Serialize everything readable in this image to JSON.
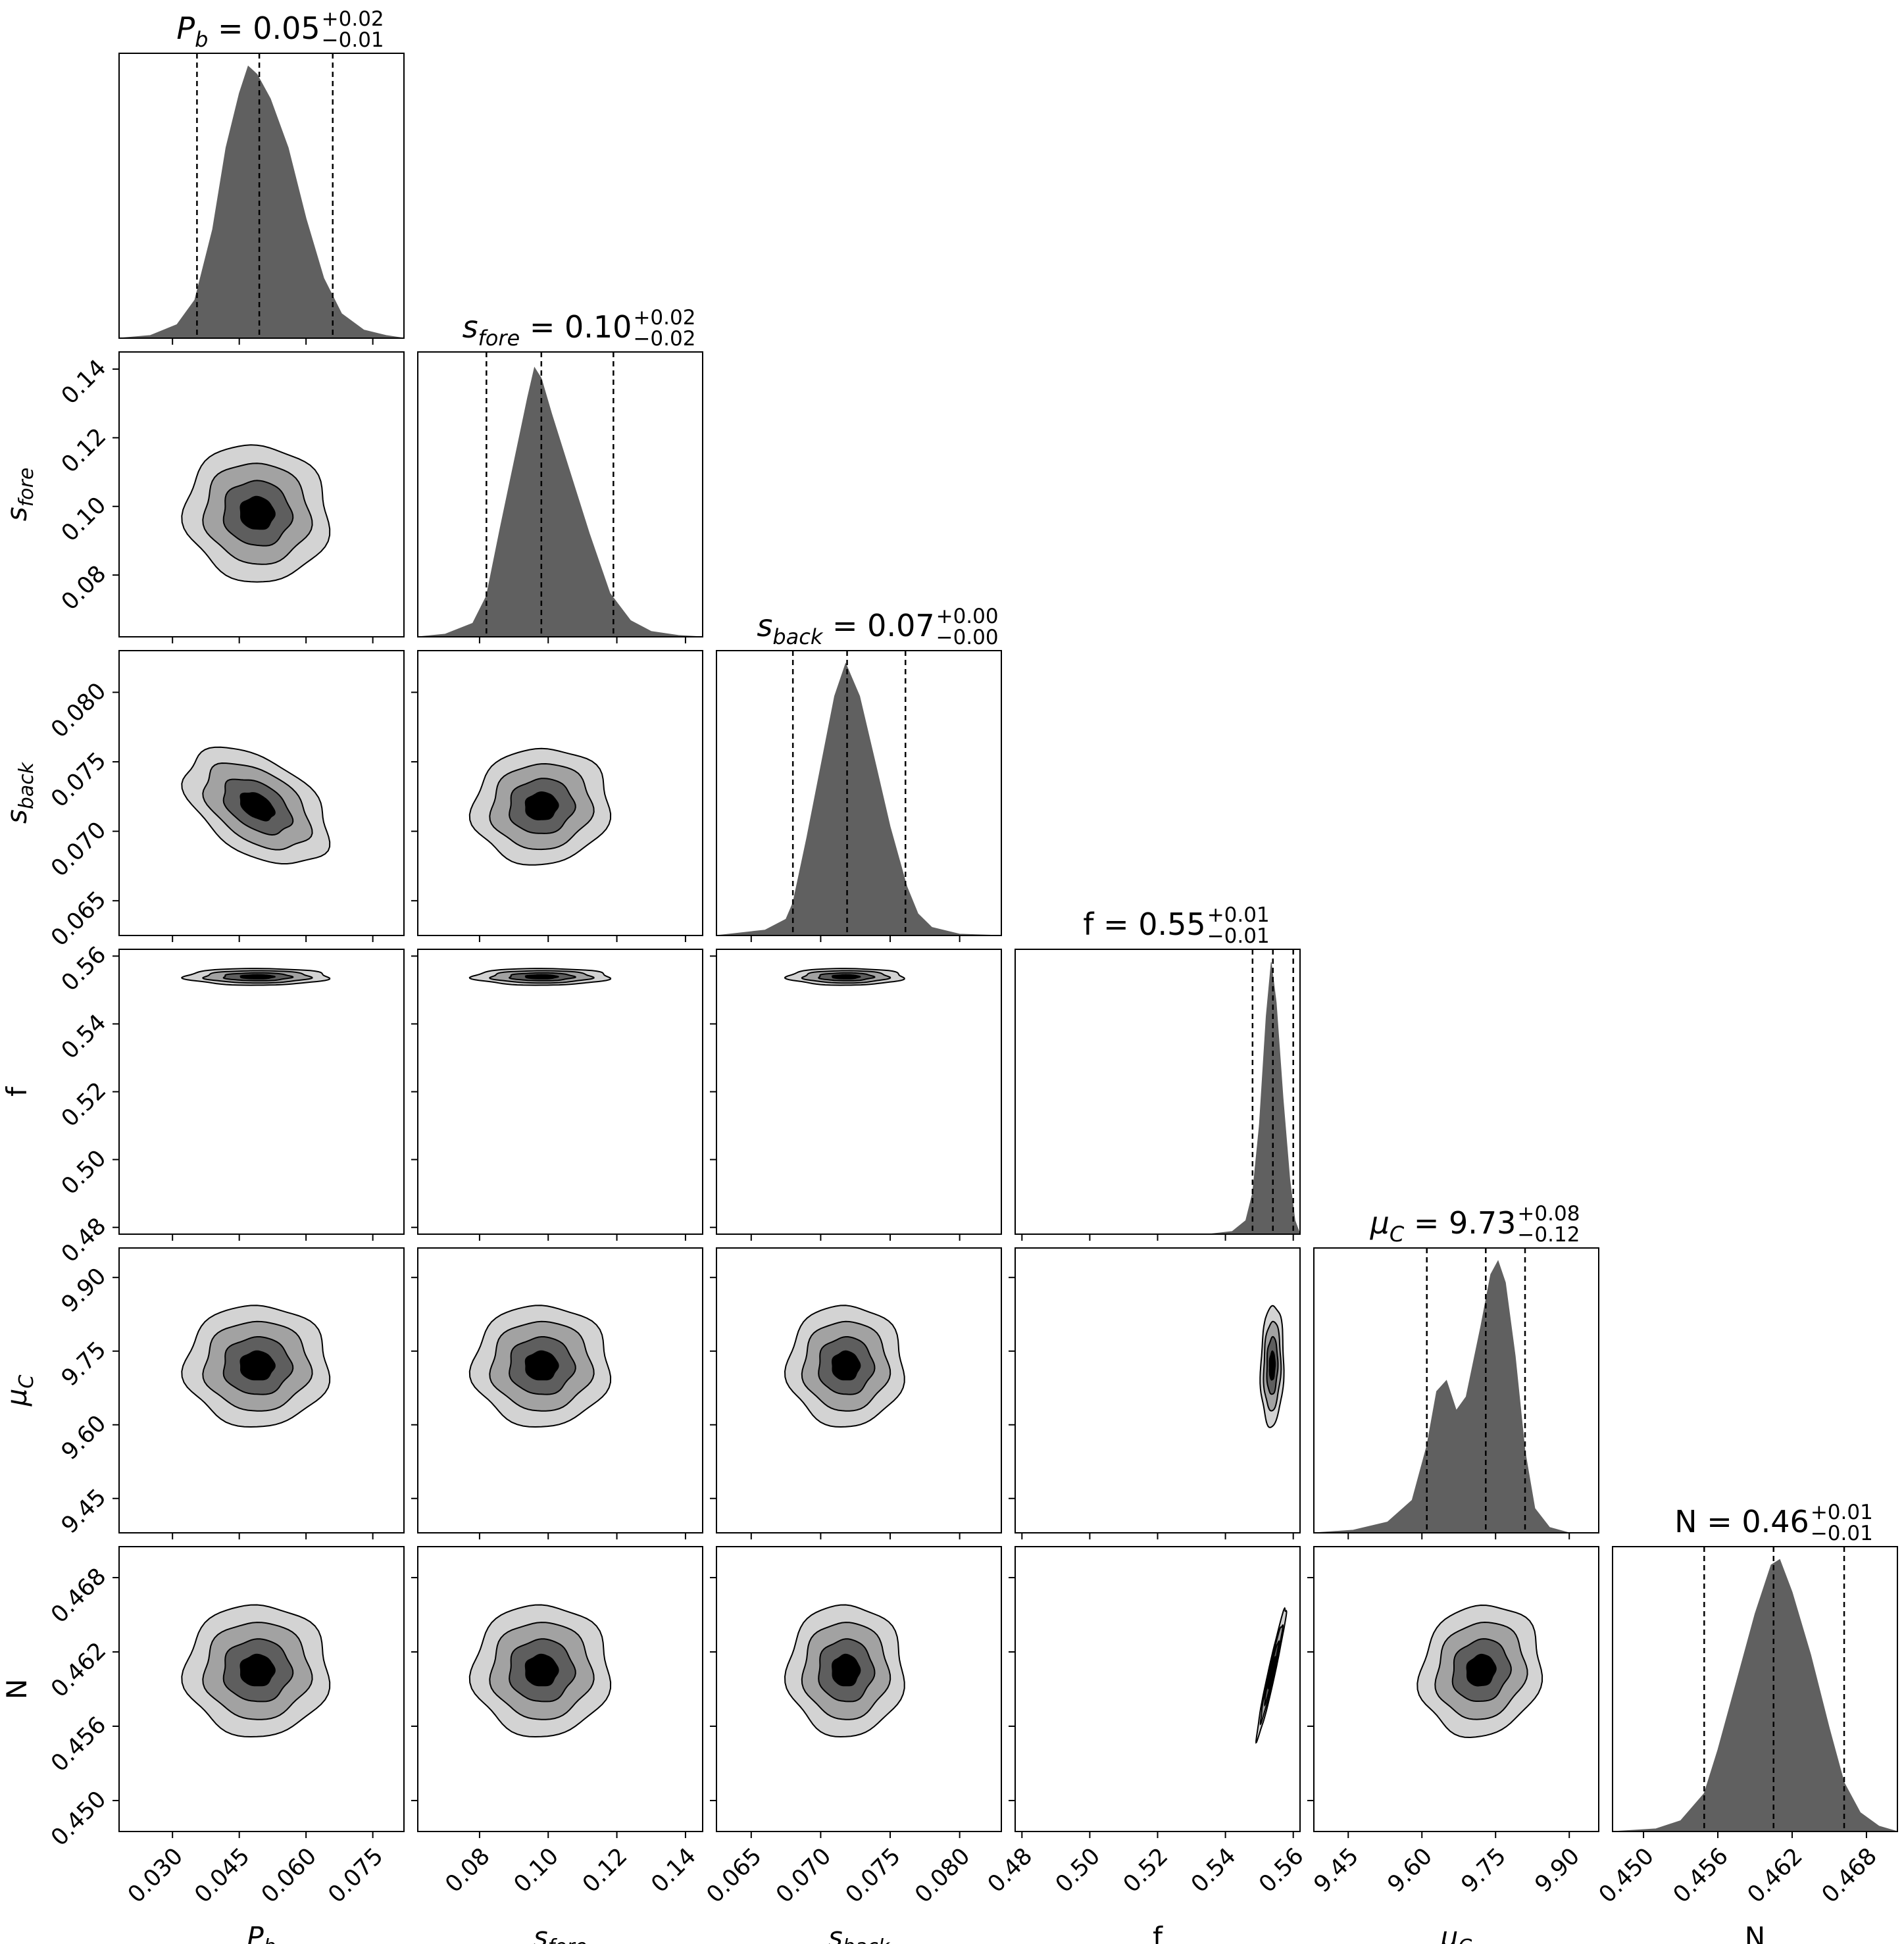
{
  "chart_data": {
    "type": "corner",
    "parameters": [
      {
        "id": "Pb",
        "label": "P_b",
        "range": [
          0.018,
          0.082
        ],
        "ticks": [
          "0.030",
          "0.045",
          "0.060",
          "0.075"
        ],
        "tick_values": [
          0.03,
          0.045,
          0.06,
          0.075
        ],
        "median": 0.0495,
        "q_low": 0.0355,
        "q_high": 0.066,
        "title": {
          "name": "P_b",
          "value": "0.05",
          "plus": "+0.02",
          "minus": "−0.01"
        },
        "hist": [
          [
            0.018,
            0.0
          ],
          [
            0.025,
            0.01
          ],
          [
            0.031,
            0.05
          ],
          [
            0.035,
            0.14
          ],
          [
            0.039,
            0.4
          ],
          [
            0.042,
            0.7
          ],
          [
            0.045,
            0.9
          ],
          [
            0.047,
            1.0
          ],
          [
            0.049,
            0.97
          ],
          [
            0.052,
            0.88
          ],
          [
            0.056,
            0.7
          ],
          [
            0.06,
            0.44
          ],
          [
            0.064,
            0.22
          ],
          [
            0.068,
            0.09
          ],
          [
            0.073,
            0.03
          ],
          [
            0.078,
            0.01
          ],
          [
            0.082,
            0.0
          ]
        ]
      },
      {
        "id": "sfore",
        "label": "s_fore",
        "range": [
          0.062,
          0.145
        ],
        "ticks": [
          "0.08",
          "0.10",
          "0.12",
          "0.14"
        ],
        "tick_values": [
          0.08,
          0.1,
          0.12,
          0.14
        ],
        "median": 0.098,
        "q_low": 0.082,
        "q_high": 0.119,
        "title": {
          "name": "s_fore",
          "value": "0.10",
          "plus": "+0.02",
          "minus": "−0.02"
        },
        "hist": [
          [
            0.062,
            0.0
          ],
          [
            0.07,
            0.01
          ],
          [
            0.078,
            0.05
          ],
          [
            0.082,
            0.15
          ],
          [
            0.086,
            0.4
          ],
          [
            0.091,
            0.7
          ],
          [
            0.094,
            0.88
          ],
          [
            0.096,
            0.99
          ],
          [
            0.098,
            0.95
          ],
          [
            0.101,
            0.82
          ],
          [
            0.106,
            0.62
          ],
          [
            0.112,
            0.38
          ],
          [
            0.118,
            0.16
          ],
          [
            0.124,
            0.06
          ],
          [
            0.13,
            0.02
          ],
          [
            0.138,
            0.005
          ],
          [
            0.145,
            0.0
          ]
        ]
      },
      {
        "id": "sback",
        "label": "s_back",
        "range": [
          0.0625,
          0.083
        ],
        "ticks": [
          "0.065",
          "0.070",
          "0.075",
          "0.080"
        ],
        "tick_values": [
          0.065,
          0.07,
          0.075,
          0.08
        ],
        "median": 0.0719,
        "q_low": 0.068,
        "q_high": 0.0761,
        "title": {
          "name": "s_back",
          "value": "0.07",
          "plus": "+0.00",
          "minus": "−0.00"
        },
        "hist": [
          [
            0.0625,
            0.0
          ],
          [
            0.066,
            0.02
          ],
          [
            0.0675,
            0.06
          ],
          [
            0.068,
            0.12
          ],
          [
            0.069,
            0.36
          ],
          [
            0.07,
            0.62
          ],
          [
            0.071,
            0.88
          ],
          [
            0.0718,
            1.0
          ],
          [
            0.0728,
            0.88
          ],
          [
            0.074,
            0.62
          ],
          [
            0.075,
            0.4
          ],
          [
            0.0762,
            0.18
          ],
          [
            0.077,
            0.08
          ],
          [
            0.078,
            0.03
          ],
          [
            0.08,
            0.005
          ],
          [
            0.083,
            0.0
          ]
        ]
      },
      {
        "id": "f",
        "label": "f",
        "range": [
          0.478,
          0.562
        ],
        "ticks": [
          "0.48",
          "0.50",
          "0.52",
          "0.54",
          "0.56"
        ],
        "tick_values": [
          0.48,
          0.5,
          0.52,
          0.54,
          0.56
        ],
        "median": 0.554,
        "q_low": 0.548,
        "q_high": 0.56,
        "title": {
          "name": "f",
          "value": "0.55",
          "plus": "+0.01",
          "minus": "−0.01"
        },
        "hist": [
          [
            0.478,
            0.0
          ],
          [
            0.535,
            0.0
          ],
          [
            0.542,
            0.01
          ],
          [
            0.546,
            0.05
          ],
          [
            0.548,
            0.15
          ],
          [
            0.55,
            0.4
          ],
          [
            0.552,
            0.8
          ],
          [
            0.5535,
            1.0
          ],
          [
            0.555,
            0.85
          ],
          [
            0.557,
            0.5
          ],
          [
            0.559,
            0.2
          ],
          [
            0.5605,
            0.05
          ],
          [
            0.562,
            0.0
          ]
        ]
      },
      {
        "id": "muC",
        "label": "μ_C",
        "range": [
          9.38,
          9.96
        ],
        "ticks": [
          "9.45",
          "9.60",
          "9.75",
          "9.90"
        ],
        "tick_values": [
          9.45,
          9.6,
          9.75,
          9.9
        ],
        "median": 9.73,
        "q_low": 9.61,
        "q_high": 9.81,
        "title": {
          "name": "μ_C",
          "value": "9.73",
          "plus": "+0.08",
          "minus": "−0.12"
        },
        "hist": [
          [
            9.38,
            0.0
          ],
          [
            9.46,
            0.01
          ],
          [
            9.53,
            0.04
          ],
          [
            9.58,
            0.12
          ],
          [
            9.61,
            0.32
          ],
          [
            9.63,
            0.52
          ],
          [
            9.65,
            0.56
          ],
          [
            9.67,
            0.45
          ],
          [
            9.69,
            0.5
          ],
          [
            9.72,
            0.76
          ],
          [
            9.74,
            0.95
          ],
          [
            9.755,
            1.0
          ],
          [
            9.77,
            0.92
          ],
          [
            9.79,
            0.65
          ],
          [
            9.81,
            0.3
          ],
          [
            9.83,
            0.09
          ],
          [
            9.86,
            0.02
          ],
          [
            9.9,
            0.0
          ],
          [
            9.96,
            0.0
          ]
        ]
      },
      {
        "id": "N",
        "label": "N",
        "range": [
          0.4475,
          0.4705
        ],
        "ticks": [
          "0.450",
          "0.456",
          "0.462",
          "0.468"
        ],
        "tick_values": [
          0.45,
          0.456,
          0.462,
          0.468
        ],
        "median": 0.4605,
        "q_low": 0.4549,
        "q_high": 0.4662,
        "title": {
          "name": "N",
          "value": "0.46",
          "plus": "+0.01",
          "minus": "−0.01"
        },
        "hist": [
          [
            0.4475,
            0.0
          ],
          [
            0.451,
            0.01
          ],
          [
            0.453,
            0.04
          ],
          [
            0.4549,
            0.14
          ],
          [
            0.456,
            0.3
          ],
          [
            0.4575,
            0.55
          ],
          [
            0.459,
            0.8
          ],
          [
            0.4603,
            0.98
          ],
          [
            0.461,
            1.0
          ],
          [
            0.462,
            0.88
          ],
          [
            0.4635,
            0.65
          ],
          [
            0.465,
            0.38
          ],
          [
            0.4662,
            0.18
          ],
          [
            0.4675,
            0.07
          ],
          [
            0.469,
            0.02
          ],
          [
            0.4705,
            0.0
          ]
        ]
      }
    ],
    "contours": [
      {
        "x": "Pb",
        "y": "sfore",
        "mean": [
          0.049,
          0.098
        ],
        "sd": [
          0.0085,
          0.0105
        ],
        "rho": -0.05
      },
      {
        "x": "Pb",
        "y": "sback",
        "mean": [
          0.049,
          0.0718
        ],
        "sd": [
          0.0085,
          0.0022
        ],
        "rho": -0.45
      },
      {
        "x": "sfore",
        "y": "sback",
        "mean": [
          0.098,
          0.0718
        ],
        "sd": [
          0.0105,
          0.0022
        ],
        "rho": 0.05
      },
      {
        "x": "Pb",
        "y": "f",
        "mean": [
          0.049,
          0.5539
        ],
        "sd": [
          0.0085,
          0.0013
        ],
        "rho": 0.0
      },
      {
        "x": "sfore",
        "y": "f",
        "mean": [
          0.098,
          0.5539
        ],
        "sd": [
          0.0105,
          0.0013
        ],
        "rho": 0.0
      },
      {
        "x": "sback",
        "y": "f",
        "mean": [
          0.0718,
          0.5539
        ],
        "sd": [
          0.0022,
          0.0013
        ],
        "rho": 0.0
      },
      {
        "x": "Pb",
        "y": "muC",
        "mean": [
          0.049,
          9.72
        ],
        "sd": [
          0.0085,
          0.065
        ],
        "rho": 0.0
      },
      {
        "x": "sfore",
        "y": "muC",
        "mean": [
          0.098,
          9.72
        ],
        "sd": [
          0.0105,
          0.065
        ],
        "rho": 0.0
      },
      {
        "x": "sback",
        "y": "muC",
        "mean": [
          0.0718,
          9.72
        ],
        "sd": [
          0.0022,
          0.065
        ],
        "rho": 0.0
      },
      {
        "x": "f",
        "y": "muC",
        "mean": [
          0.5538,
          9.72
        ],
        "sd": [
          0.0018,
          0.065
        ],
        "rho": 0.1
      },
      {
        "x": "Pb",
        "y": "N",
        "mean": [
          0.049,
          0.4605
        ],
        "sd": [
          0.0085,
          0.0028
        ],
        "rho": 0.0
      },
      {
        "x": "sfore",
        "y": "N",
        "mean": [
          0.098,
          0.4605
        ],
        "sd": [
          0.0105,
          0.0028
        ],
        "rho": 0.0
      },
      {
        "x": "sback",
        "y": "N",
        "mean": [
          0.0718,
          0.4605
        ],
        "sd": [
          0.0022,
          0.0028
        ],
        "rho": 0.0
      },
      {
        "x": "f",
        "y": "N",
        "mean": [
          0.5536,
          0.4603
        ],
        "sd": [
          0.0023,
          0.0028
        ],
        "rho": 0.97
      },
      {
        "x": "muC",
        "y": "N",
        "mean": [
          9.72,
          0.4605
        ],
        "sd": [
          0.065,
          0.0028
        ],
        "rho": 0.1
      }
    ],
    "contour_levels_sigma": [
      0.45,
      0.9,
      1.4,
      1.9
    ],
    "contour_fill_colors": [
      "#000000",
      "#5e5e5e",
      "#a2a2a2",
      "#d3d3d3"
    ],
    "hist_color": "#606060",
    "grid": false,
    "legend": "none"
  }
}
